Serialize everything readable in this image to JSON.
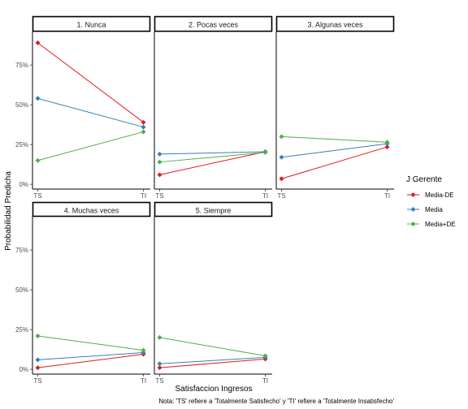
{
  "chart_data": {
    "type": "line",
    "x": [
      "TS",
      "TI"
    ],
    "xlabel": "Satisfaccion Ingresos",
    "ylabel": "Probabilidad Predicha",
    "ylim": [
      -0.03,
      0.96
    ],
    "yticks": [
      0,
      0.25,
      0.5,
      0.75
    ],
    "ytick_labels": [
      "0%",
      "25%",
      "50%",
      "75%"
    ],
    "grid": false,
    "legend": {
      "title": "J Gerente",
      "position": "right",
      "entries": [
        "Media-DE",
        "Media",
        "Media+DE"
      ]
    },
    "colors": [
      "#e41a1c",
      "#377eb8",
      "#4daf4a"
    ],
    "caption": "Nota: 'TS' refiere a 'Totalmente Satisfecho' y 'TI' refiere a 'Totalmente Insatisfecho'",
    "panels": [
      {
        "title": "1. Nunca",
        "series": [
          {
            "name": "Media-DE",
            "values": [
              0.89,
              0.39
            ]
          },
          {
            "name": "Media",
            "values": [
              0.54,
              0.36
            ]
          },
          {
            "name": "Media+DE",
            "values": [
              0.15,
              0.33
            ]
          }
        ]
      },
      {
        "title": "2. Pocas veces",
        "series": [
          {
            "name": "Media-DE",
            "values": [
              0.06,
              0.205
            ]
          },
          {
            "name": "Media",
            "values": [
              0.19,
              0.205
            ]
          },
          {
            "name": "Media+DE",
            "values": [
              0.14,
              0.2
            ]
          }
        ]
      },
      {
        "title": "3. Algunas veces",
        "series": [
          {
            "name": "Media-DE",
            "values": [
              0.035,
              0.235
            ]
          },
          {
            "name": "Media",
            "values": [
              0.17,
              0.255
            ]
          },
          {
            "name": "Media+DE",
            "values": [
              0.3,
              0.265
            ]
          }
        ]
      },
      {
        "title": "4. Muchas veces",
        "series": [
          {
            "name": "Media-DE",
            "values": [
              0.01,
              0.095
            ]
          },
          {
            "name": "Media",
            "values": [
              0.06,
              0.105
            ]
          },
          {
            "name": "Media+DE",
            "values": [
              0.21,
              0.12
            ]
          }
        ]
      },
      {
        "title": "5. Siempre",
        "series": [
          {
            "name": "Media-DE",
            "values": [
              0.01,
              0.065
            ]
          },
          {
            "name": "Media",
            "values": [
              0.035,
              0.075
            ]
          },
          {
            "name": "Media+DE",
            "values": [
              0.2,
              0.085
            ]
          }
        ]
      }
    ]
  }
}
